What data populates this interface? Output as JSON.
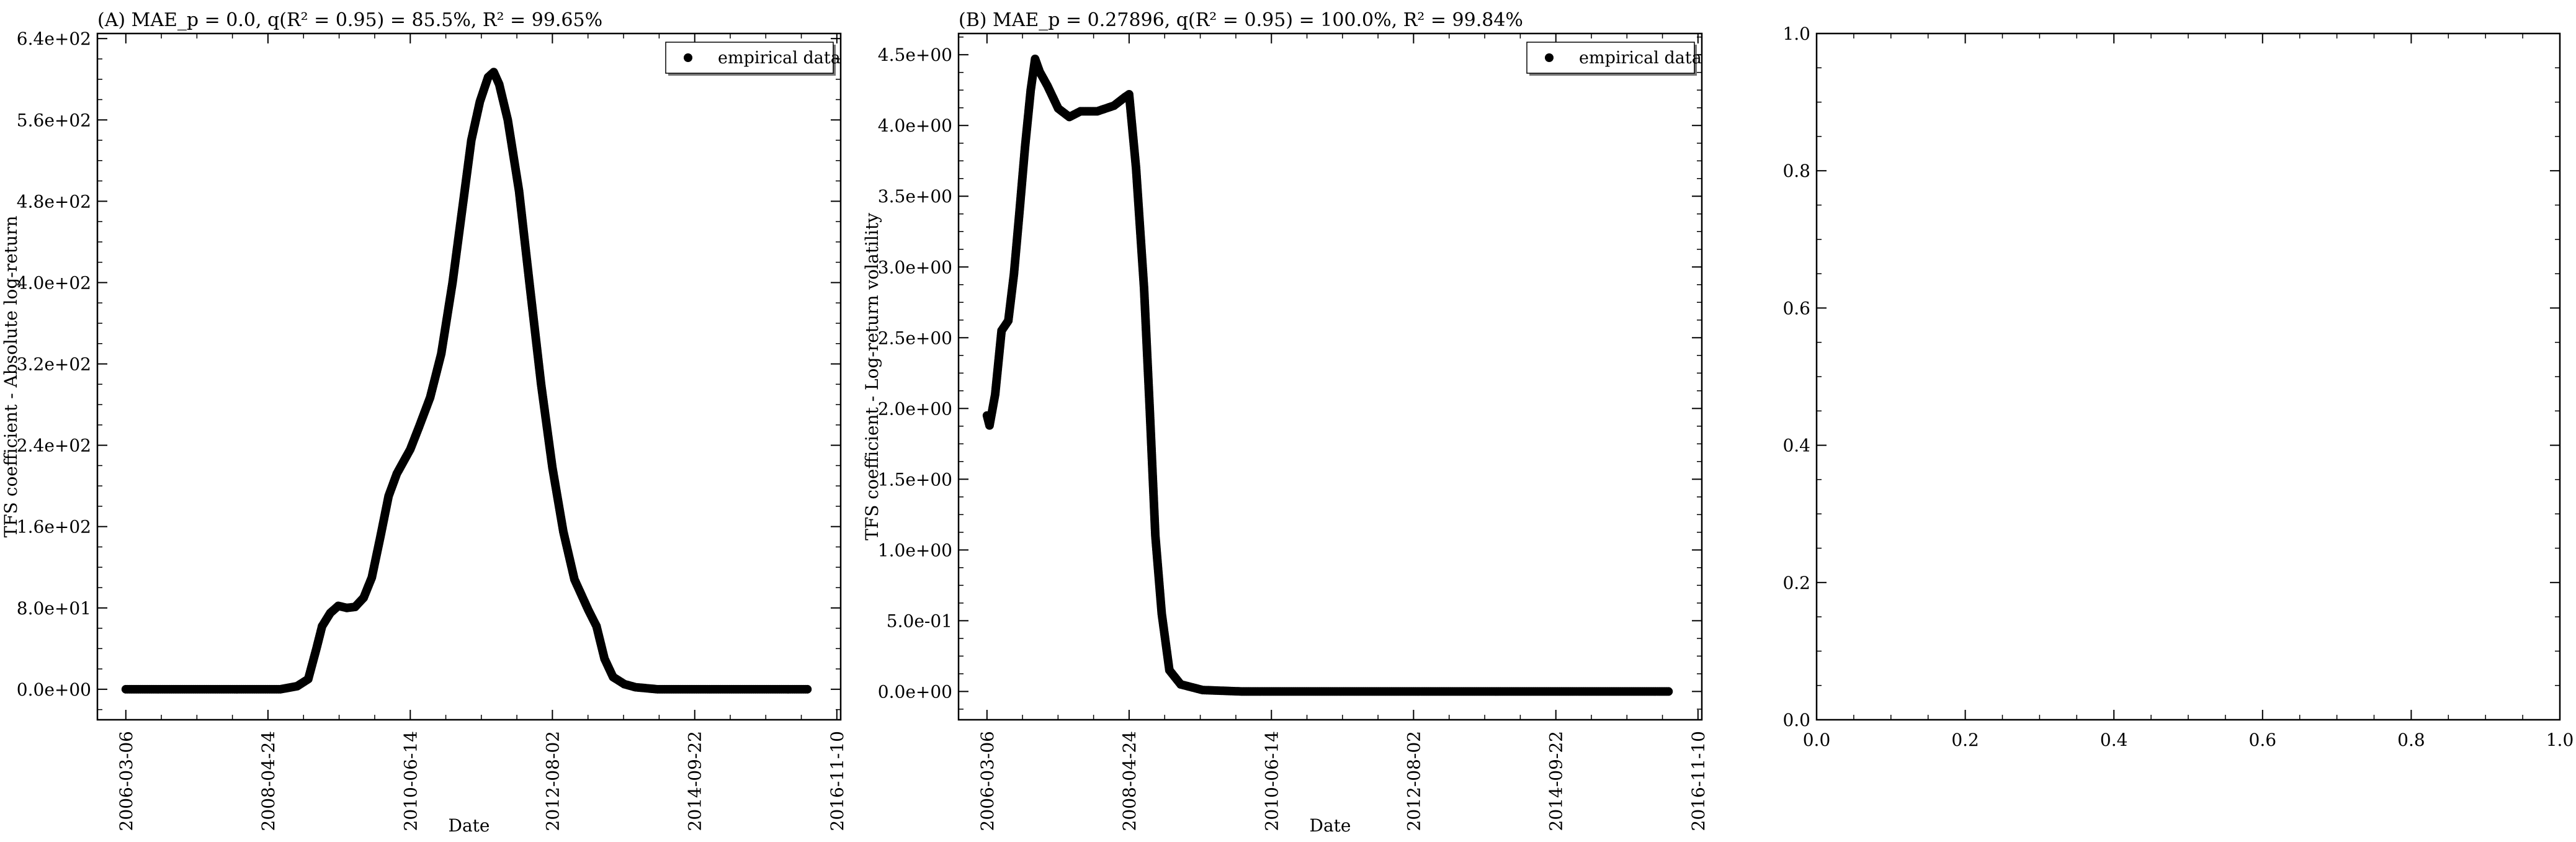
{
  "chart_data": [
    {
      "type": "scatter",
      "title": "(A) MAE_p = 0.0, q(R² = 0.95) = 85.5%, R² = 99.65%",
      "xlabel": "Date",
      "ylabel": "TFS coefficient - Absolute log-return",
      "x_ticks": [
        "2006-03-06",
        "2008-04-24",
        "2010-06-14",
        "2012-08-02",
        "2014-09-22",
        "2016-11-10"
      ],
      "y_ticks": [
        "0.0e+00",
        "8.0e+01",
        "1.6e+02",
        "2.4e+02",
        "3.2e+02",
        "4.0e+02",
        "4.8e+02",
        "5.6e+02",
        "6.4e+02"
      ],
      "xlim": [
        "2005-10-01",
        "2016-12-01"
      ],
      "ylim": [
        -30,
        645
      ],
      "legend": {
        "placement": "upper-right",
        "entries": [
          "empirical data"
        ]
      },
      "series": [
        {
          "name": "empirical data",
          "points": [
            [
              "2006-03-06",
              0
            ],
            [
              "2007-01-01",
              0
            ],
            [
              "2008-01-01",
              0
            ],
            [
              "2008-07-01",
              0
            ],
            [
              "2008-10-01",
              3
            ],
            [
              "2008-12-01",
              10
            ],
            [
              "2009-01-15",
              40
            ],
            [
              "2009-02-15",
              62
            ],
            [
              "2009-04-01",
              75
            ],
            [
              "2009-05-15",
              82
            ],
            [
              "2009-07-01",
              80
            ],
            [
              "2009-08-15",
              81
            ],
            [
              "2009-10-01",
              90
            ],
            [
              "2009-11-15",
              110
            ],
            [
              "2010-01-01",
              150
            ],
            [
              "2010-02-15",
              190
            ],
            [
              "2010-04-01",
              212
            ],
            [
              "2010-06-14",
              236
            ],
            [
              "2010-08-01",
              258
            ],
            [
              "2010-10-01",
              287
            ],
            [
              "2010-12-01",
              330
            ],
            [
              "2011-02-01",
              400
            ],
            [
              "2011-04-01",
              480
            ],
            [
              "2011-05-15",
              540
            ],
            [
              "2011-07-01",
              578
            ],
            [
              "2011-08-15",
              602
            ],
            [
              "2011-09-15",
              607
            ],
            [
              "2011-10-15",
              595
            ],
            [
              "2011-12-01",
              560
            ],
            [
              "2012-02-01",
              490
            ],
            [
              "2012-04-01",
              395
            ],
            [
              "2012-06-01",
              300
            ],
            [
              "2012-08-02",
              218
            ],
            [
              "2012-10-01",
              155
            ],
            [
              "2012-12-01",
              108
            ],
            [
              "2013-02-15",
              78
            ],
            [
              "2013-04-01",
              62
            ],
            [
              "2013-05-15",
              30
            ],
            [
              "2013-07-01",
              12
            ],
            [
              "2013-09-01",
              5
            ],
            [
              "2013-11-01",
              2
            ],
            [
              "2014-03-01",
              0
            ],
            [
              "2014-09-22",
              0
            ],
            [
              "2015-06-01",
              0
            ],
            [
              "2016-06-01",
              0
            ]
          ]
        }
      ]
    },
    {
      "type": "scatter",
      "title": "(B) MAE_p = 0.27896, q(R² = 0.95) = 100.0%, R² = 99.84%",
      "xlabel": "Date",
      "ylabel": "TFS coefficient - Log-return volatility",
      "x_ticks": [
        "2006-03-06",
        "2008-04-24",
        "2010-06-14",
        "2012-08-02",
        "2014-09-22",
        "2016-11-10"
      ],
      "y_ticks": [
        "0.0e+00",
        "5.0e-01",
        "1.0e+00",
        "1.5e+00",
        "2.0e+00",
        "2.5e+00",
        "3.0e+00",
        "3.5e+00",
        "4.0e+00",
        "4.5e+00"
      ],
      "xlim": [
        "2005-10-01",
        "2016-12-01"
      ],
      "ylim": [
        -0.2,
        4.65
      ],
      "legend": {
        "placement": "upper-right",
        "entries": [
          "empirical data"
        ]
      },
      "series": [
        {
          "name": "empirical data",
          "points": [
            [
              "2006-03-06",
              1.95
            ],
            [
              "2006-03-20",
              1.88
            ],
            [
              "2006-04-20",
              2.1
            ],
            [
              "2006-05-25",
              2.55
            ],
            [
              "2006-07-01",
              2.62
            ],
            [
              "2006-08-01",
              2.95
            ],
            [
              "2006-09-01",
              3.4
            ],
            [
              "2006-10-01",
              3.85
            ],
            [
              "2006-11-01",
              4.25
            ],
            [
              "2006-11-25",
              4.47
            ],
            [
              "2006-12-20",
              4.38
            ],
            [
              "2007-02-01",
              4.28
            ],
            [
              "2007-04-01",
              4.12
            ],
            [
              "2007-06-01",
              4.06
            ],
            [
              "2007-08-01",
              4.1
            ],
            [
              "2007-11-01",
              4.1
            ],
            [
              "2008-02-01",
              4.14
            ],
            [
              "2008-04-01",
              4.2
            ],
            [
              "2008-04-24",
              4.22
            ],
            [
              "2008-06-01",
              3.7
            ],
            [
              "2008-07-15",
              2.85
            ],
            [
              "2008-08-15",
              2.0
            ],
            [
              "2008-09-15",
              1.1
            ],
            [
              "2008-10-20",
              0.55
            ],
            [
              "2008-12-01",
              0.15
            ],
            [
              "2009-02-01",
              0.05
            ],
            [
              "2009-06-01",
              0.01
            ],
            [
              "2010-01-01",
              0.0
            ],
            [
              "2010-06-14",
              0.0
            ],
            [
              "2012-08-02",
              0.0
            ],
            [
              "2014-09-22",
              0.0
            ],
            [
              "2016-06-01",
              0.0
            ]
          ]
        }
      ]
    },
    {
      "type": "scatter",
      "title": "",
      "xlabel": "",
      "ylabel": "",
      "x_ticks": [
        "0.0",
        "0.2",
        "0.4",
        "0.6",
        "0.8",
        "1.0"
      ],
      "y_ticks": [
        "0.0",
        "0.2",
        "0.4",
        "0.6",
        "0.8",
        "1.0"
      ],
      "xlim": [
        0,
        1
      ],
      "ylim": [
        0,
        1
      ],
      "series": []
    }
  ]
}
